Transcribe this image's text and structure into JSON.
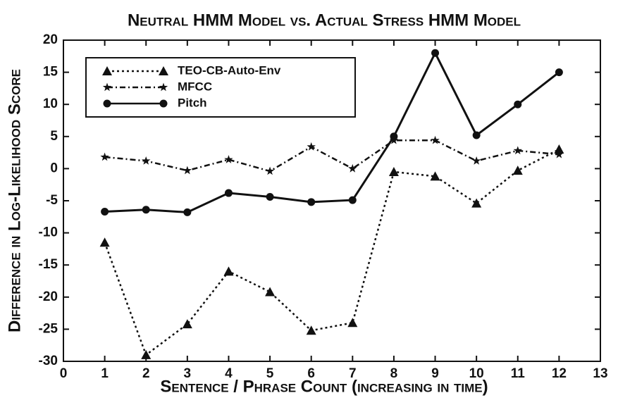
{
  "chart_data": {
    "type": "line",
    "title": "Neutral HMM Model vs. Actual Stress HMM Model",
    "xlabel": "Sentence / Phrase Count (increasing in time)",
    "ylabel": "Difference in Log-Likelihood Score",
    "x": [
      1,
      2,
      3,
      4,
      5,
      6,
      7,
      8,
      9,
      10,
      11,
      12
    ],
    "series": [
      {
        "name": "TEO-CB-Auto-Env",
        "color": "#111111",
        "marker": "triangle",
        "linestyle": "dotted",
        "values": [
          -11.5,
          -29,
          -24.2,
          -16,
          -19.2,
          -25.2,
          -24,
          -0.5,
          -1.2,
          -5.4,
          -0.3,
          3
        ]
      },
      {
        "name": "MFCC",
        "color": "#111111",
        "marker": "star",
        "linestyle": "dashdot",
        "values": [
          1.8,
          1.2,
          -0.3,
          1.4,
          -0.4,
          3.4,
          0,
          4.4,
          4.4,
          1.2,
          2.8,
          2.2
        ]
      },
      {
        "name": "Pitch",
        "color": "#111111",
        "marker": "circle",
        "linestyle": "solid",
        "values": [
          -6.7,
          -6.4,
          -6.8,
          -3.8,
          -4.4,
          -5.2,
          -4.9,
          5,
          18,
          5.2,
          10,
          15
        ]
      }
    ],
    "xlim": [
      0,
      13
    ],
    "xticks": [
      0,
      1,
      2,
      3,
      4,
      5,
      6,
      7,
      8,
      9,
      10,
      11,
      12,
      13
    ],
    "ylim": [
      -30,
      20
    ],
    "yticks": [
      20,
      15,
      10,
      5,
      0,
      -5,
      -10,
      -15,
      -20,
      -25,
      -30
    ],
    "legend": "upper left"
  }
}
